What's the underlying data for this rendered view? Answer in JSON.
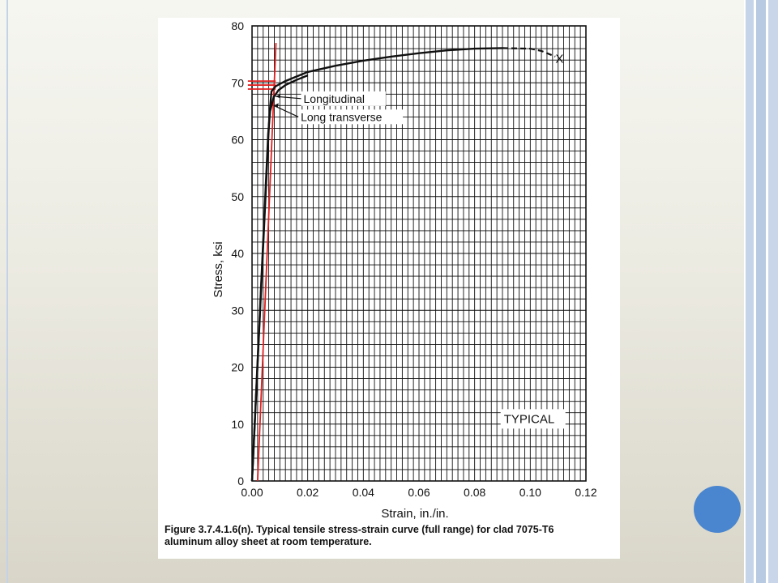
{
  "slide": {
    "accent_color": "#4a86cf",
    "border_color": "#c5d4e8"
  },
  "figure": {
    "caption_line1": "Figure 3.7.4.1.6(n).  Typical tensile stress-strain curve (full range) for clad 7075-T6",
    "caption_line2": "aluminum alloy sheet at room temperature."
  },
  "chart_data": {
    "type": "line",
    "xlabel": "Strain, in./in.",
    "ylabel": "Stress, ksi",
    "xlim": [
      0,
      0.12
    ],
    "ylim": [
      0,
      80
    ],
    "x_ticks": [
      0,
      0.02,
      0.04,
      0.06,
      0.08,
      0.1,
      0.12
    ],
    "x_tick_labels": [
      "0.00",
      "0.02",
      "0.04",
      "0.06",
      "0.08",
      "0.10",
      "0.12"
    ],
    "y_ticks": [
      0,
      10,
      20,
      30,
      40,
      50,
      60,
      70,
      80
    ],
    "y_tick_labels": [
      "0",
      "10",
      "20",
      "30",
      "40",
      "50",
      "60",
      "70",
      "80"
    ],
    "grid": true,
    "grid_minor_step_x": 0.002,
    "grid_minor_step_y": 2,
    "series": [
      {
        "name": "Longitudinal",
        "color": "#111111",
        "points": [
          [
            0,
            0
          ],
          [
            0.0062,
            64
          ],
          [
            0.007,
            68.5
          ],
          [
            0.0085,
            69.4
          ],
          [
            0.012,
            70.3
          ],
          [
            0.02,
            71.9
          ],
          [
            0.03,
            73.0
          ],
          [
            0.04,
            73.9
          ],
          [
            0.05,
            74.6
          ],
          [
            0.06,
            75.2
          ],
          [
            0.07,
            75.7
          ],
          [
            0.08,
            76.0
          ],
          [
            0.09,
            76.1
          ],
          [
            0.1,
            76.0
          ],
          [
            0.104,
            75.6
          ],
          [
            0.109,
            74.6
          ]
        ],
        "dashed_from_x": 0.098
      },
      {
        "name": "Long transverse",
        "color": "#111111",
        "points": [
          [
            0,
            0
          ],
          [
            0.0058,
            61
          ],
          [
            0.0065,
            65
          ],
          [
            0.0078,
            67.5
          ],
          [
            0.0095,
            68.7
          ],
          [
            0.012,
            69.6
          ],
          [
            0.016,
            70.5
          ],
          [
            0.02,
            71.3
          ]
        ]
      }
    ],
    "reference_lines": [
      {
        "color": "#e02020",
        "points": [
          [
            0.002,
            0
          ],
          [
            0.0086,
            77
          ]
        ]
      },
      {
        "color": "#e02020",
        "points": [
          [
            -0.0015,
            70.3
          ],
          [
            0.0085,
            70.3
          ]
        ]
      },
      {
        "color": "#e02020",
        "points": [
          [
            -0.0015,
            69.6
          ],
          [
            0.0085,
            69.6
          ]
        ]
      },
      {
        "color": "#e02020",
        "points": [
          [
            -0.0015,
            68.9
          ],
          [
            0.0085,
            68.9
          ]
        ]
      }
    ],
    "fracture_marker": {
      "label": "X",
      "x": 0.1105,
      "y": 74.2
    },
    "annotations": [
      {
        "text": "Longitudinal",
        "x": 0.0185,
        "y": 66.5,
        "leader_to": [
          0.0085,
          67.6
        ]
      },
      {
        "text": "Long transverse",
        "x": 0.0175,
        "y": 63.3,
        "leader_to": [
          0.0078,
          66.0
        ]
      }
    ],
    "legend_box": {
      "text": "TYPICAL",
      "x": 0.0905,
      "y": 10.2
    }
  }
}
